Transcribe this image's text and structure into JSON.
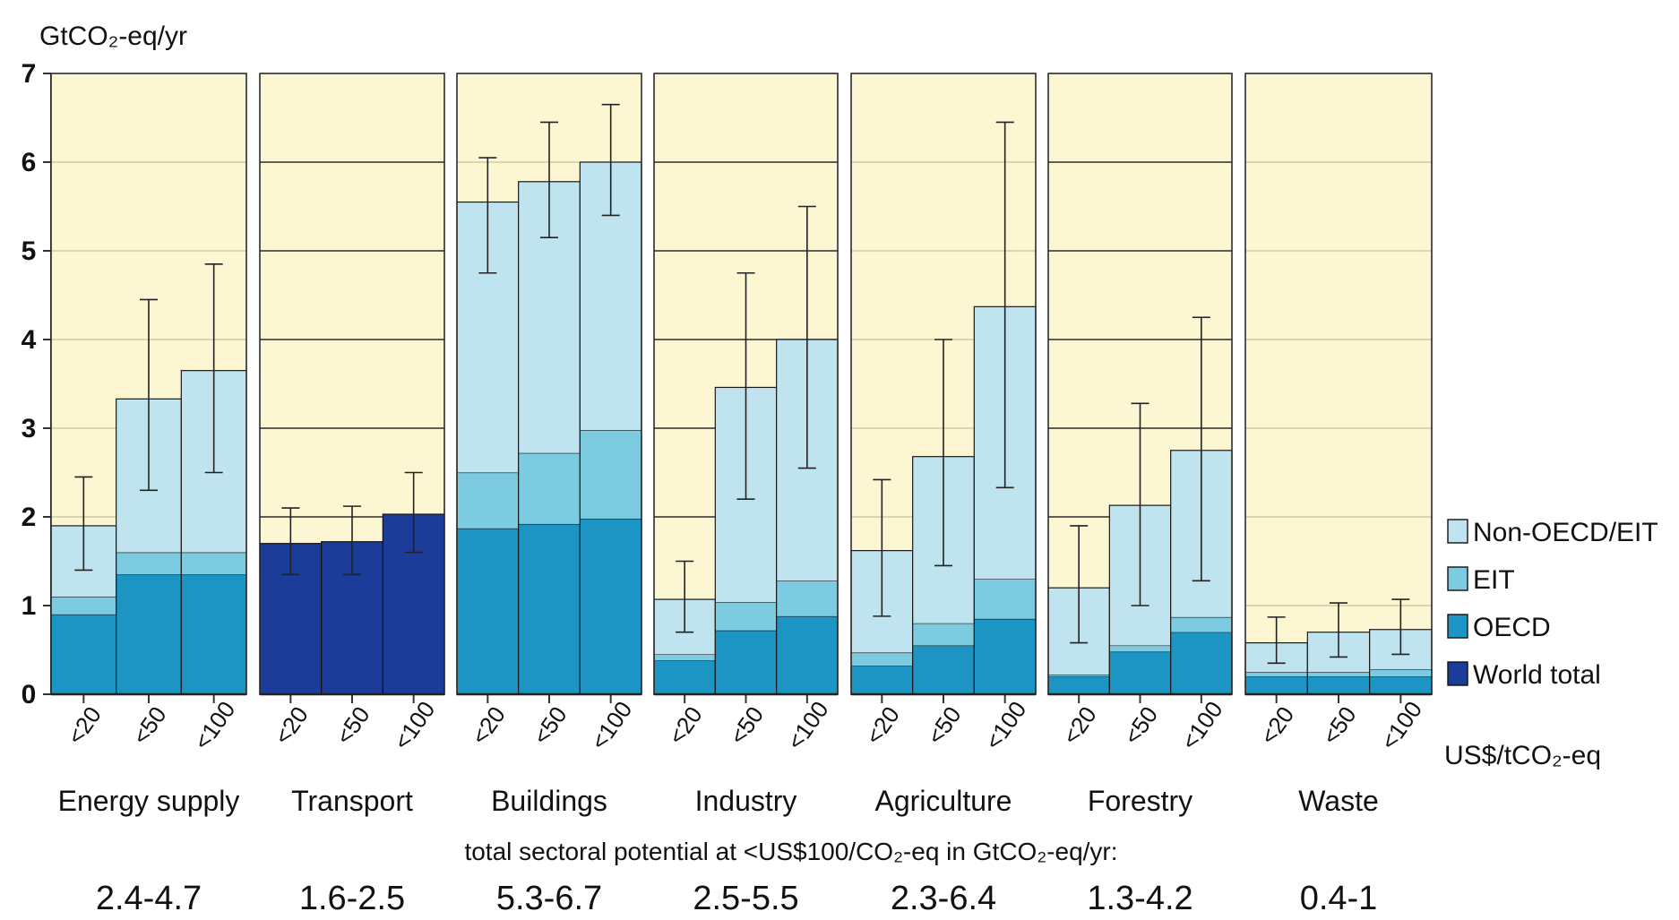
{
  "chart_data": {
    "type": "bar",
    "stacked": true,
    "ylabel": "GtCO₂-eq/yr",
    "ylim": [
      0,
      7
    ],
    "yticks": [
      "0",
      "1",
      "2",
      "3",
      "4",
      "5",
      "6",
      "7"
    ],
    "price_unit": "US$/tCO₂-eq",
    "categories": [
      "<20",
      "<50",
      "<100"
    ],
    "legend": [
      {
        "key": "nonoecd",
        "label": "Non-OECD/EIT",
        "color": "#bfe3ef"
      },
      {
        "key": "eit",
        "label": "EIT",
        "color": "#7ccbe0"
      },
      {
        "key": "oecd",
        "label": "OECD",
        "color": "#1c94c4"
      },
      {
        "key": "world",
        "label": "World total",
        "color": "#1c3c9a"
      }
    ],
    "note": "total sectoral potential at <US$100/CO₂-eq in GtCO₂-eq/yr:",
    "sectors": [
      {
        "name": "Energy supply",
        "range": "2.4-4.7",
        "bg": "#fdf6d3",
        "grid": "light",
        "bars": [
          {
            "oecd": 0.9,
            "eit": 0.2,
            "nonoecd": 0.8,
            "err": [
              1.4,
              2.45
            ]
          },
          {
            "oecd": 1.35,
            "eit": 0.25,
            "nonoecd": 1.73,
            "err": [
              2.3,
              4.45
            ]
          },
          {
            "oecd": 1.35,
            "eit": 0.25,
            "nonoecd": 2.05,
            "err": [
              2.5,
              4.85
            ]
          }
        ]
      },
      {
        "name": "Transport",
        "range": "1.6-2.5",
        "bg": "#fdf6d3",
        "grid": "dark",
        "bars": [
          {
            "world": 1.7,
            "err": [
              1.35,
              2.1
            ]
          },
          {
            "world": 1.72,
            "err": [
              1.35,
              2.12
            ]
          },
          {
            "world": 2.03,
            "err": [
              1.6,
              2.5
            ]
          }
        ]
      },
      {
        "name": "Buildings",
        "range": "5.3-6.7",
        "bg": "#fdf6d3",
        "grid": "light",
        "bars": [
          {
            "oecd": 1.87,
            "eit": 0.63,
            "nonoecd": 3.05,
            "err": [
              4.75,
              6.05
            ]
          },
          {
            "oecd": 1.92,
            "eit": 0.8,
            "nonoecd": 3.06,
            "err": [
              5.15,
              6.45
            ]
          },
          {
            "oecd": 1.98,
            "eit": 1.0,
            "nonoecd": 3.02,
            "err": [
              5.4,
              6.65
            ]
          }
        ]
      },
      {
        "name": "Industry",
        "range": "2.5-5.5",
        "bg": "#fdf6d3",
        "grid": "dark",
        "bars": [
          {
            "oecd": 0.38,
            "eit": 0.07,
            "nonoecd": 0.62,
            "err": [
              0.7,
              1.5
            ]
          },
          {
            "oecd": 0.72,
            "eit": 0.32,
            "nonoecd": 2.42,
            "err": [
              2.2,
              4.75
            ]
          },
          {
            "oecd": 0.88,
            "eit": 0.4,
            "nonoecd": 2.72,
            "err": [
              2.55,
              5.5
            ]
          }
        ]
      },
      {
        "name": "Agriculture",
        "range": "2.3-6.4",
        "bg": "#fdf6d3",
        "grid": "light",
        "bars": [
          {
            "oecd": 0.32,
            "eit": 0.15,
            "nonoecd": 1.15,
            "err": [
              0.88,
              2.42
            ]
          },
          {
            "oecd": 0.55,
            "eit": 0.25,
            "nonoecd": 1.88,
            "err": [
              1.45,
              4.0
            ]
          },
          {
            "oecd": 0.85,
            "eit": 0.45,
            "nonoecd": 3.07,
            "err": [
              2.33,
              6.45
            ]
          }
        ]
      },
      {
        "name": "Forestry",
        "range": "1.3-4.2",
        "bg": "#fdf6d3",
        "grid": "dark",
        "bars": [
          {
            "oecd": 0.2,
            "eit": 0.02,
            "nonoecd": 0.98,
            "err": [
              0.58,
              1.9
            ]
          },
          {
            "oecd": 0.48,
            "eit": 0.07,
            "nonoecd": 1.58,
            "err": [
              1.0,
              3.28
            ]
          },
          {
            "oecd": 0.7,
            "eit": 0.17,
            "nonoecd": 1.88,
            "err": [
              1.28,
              4.25
            ]
          }
        ]
      },
      {
        "name": "Waste",
        "range": "0.4-1",
        "bg": "#fdf6d3",
        "grid": "light",
        "bars": [
          {
            "oecd": 0.2,
            "eit": 0.05,
            "nonoecd": 0.33,
            "err": [
              0.35,
              0.87
            ]
          },
          {
            "oecd": 0.2,
            "eit": 0.05,
            "nonoecd": 0.45,
            "err": [
              0.42,
              1.03
            ]
          },
          {
            "oecd": 0.2,
            "eit": 0.08,
            "nonoecd": 0.45,
            "err": [
              0.45,
              1.07
            ]
          }
        ]
      }
    ]
  }
}
